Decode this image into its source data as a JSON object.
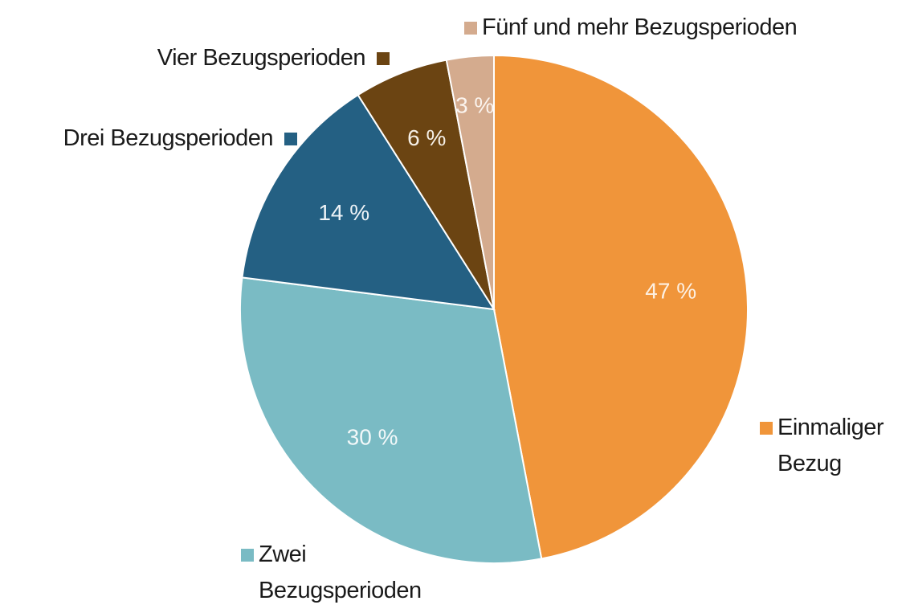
{
  "chart_data": {
    "type": "pie",
    "categories": [
      "Einmaliger Bezug",
      "Zwei Bezugsperioden",
      "Drei Bezugsperioden",
      "Vier Bezugsperioden",
      "Fünf und mehr Bezugsperioden"
    ],
    "values": [
      47,
      30,
      14,
      6,
      3
    ],
    "value_labels": [
      "47 %",
      "30 %",
      "14 %",
      "6 %",
      "3 %"
    ],
    "colors": [
      "#f0953a",
      "#7abbc4",
      "#246083",
      "#6b4412",
      "#d4ab8e"
    ]
  }
}
